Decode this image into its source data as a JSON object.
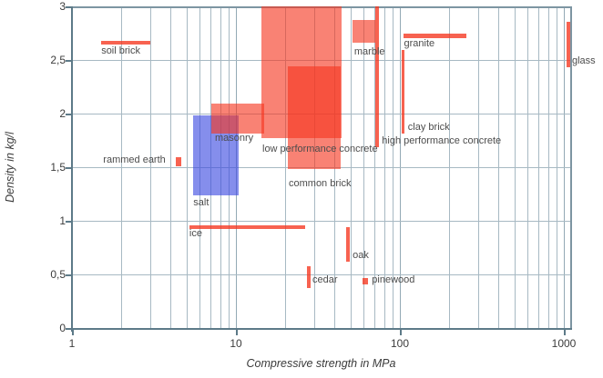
{
  "chart_data": {
    "type": "scatter",
    "title": "",
    "xlabel": "Compressive strength in MPa",
    "ylabel": "Density in kg/l",
    "x_scale": "log",
    "x_range": [
      1,
      1094
    ],
    "y_range": [
      0,
      3
    ],
    "grid": true,
    "legend": "none",
    "x_ticks": [
      {
        "v": 1,
        "label": "1"
      },
      {
        "v": 10,
        "label": "10"
      },
      {
        "v": 100,
        "label": "100"
      },
      {
        "v": 1000,
        "label": "1000"
      }
    ],
    "y_ticks": [
      {
        "v": 0,
        "label": "0"
      },
      {
        "v": 0.5,
        "label": "0,5"
      },
      {
        "v": 1,
        "label": "1"
      },
      {
        "v": 1.5,
        "label": "1,5"
      },
      {
        "v": 2,
        "label": "2"
      },
      {
        "v": 2.5,
        "label": "2,5"
      },
      {
        "v": 3,
        "label": "3"
      }
    ],
    "materials": [
      {
        "name": "soil brick",
        "kind": "bar",
        "color": "red",
        "x": [
          1.5,
          3.0
        ],
        "y": [
          2.64,
          2.68
        ],
        "label": {
          "text": "soil brick",
          "x": 1.51,
          "y": 2.64
        }
      },
      {
        "name": "rammed earth",
        "kind": "bar",
        "color": "red",
        "x": [
          4.3,
          4.65
        ],
        "y": [
          1.51,
          1.59
        ],
        "label": {
          "text": "rammed earth",
          "x": 1.55,
          "y": 1.62
        }
      },
      {
        "name": "salt",
        "kind": "area",
        "color": "blue",
        "x": [
          5.5,
          10.4
        ],
        "y": [
          1.24,
          1.98
        ],
        "label": {
          "text": "salt",
          "x": 5.5,
          "y": 1.22
        }
      },
      {
        "name": "masonry",
        "kind": "area",
        "color": "red",
        "x": [
          7.1,
          14.9
        ],
        "y": [
          1.81,
          2.09
        ],
        "label": {
          "text": "masonry",
          "x": 7.45,
          "y": 1.82
        }
      },
      {
        "name": "ice",
        "kind": "bar",
        "color": "red",
        "x": [
          5.2,
          26.4
        ],
        "y": [
          0.92,
          0.96
        ],
        "label": {
          "text": "ice",
          "x": 5.2,
          "y": 0.93
        }
      },
      {
        "name": "low performance concrete",
        "kind": "area",
        "color": "red",
        "x": [
          14.3,
          44.3
        ],
        "y": [
          1.77,
          3.0
        ],
        "label": {
          "text": "low performance concrete",
          "x": 14.5,
          "y": 1.72
        }
      },
      {
        "name": "common brick",
        "kind": "area",
        "color": "red",
        "x": [
          20.8,
          43.5
        ],
        "y": [
          1.48,
          2.44
        ],
        "label": {
          "text": "common brick",
          "x": 21.0,
          "y": 1.4
        }
      },
      {
        "name": "cedar",
        "kind": "bar",
        "color": "red",
        "x": [
          27.2,
          28.7
        ],
        "y": [
          0.37,
          0.58
        ],
        "label": {
          "text": "cedar",
          "x": 29.3,
          "y": 0.5
        }
      },
      {
        "name": "oak",
        "kind": "bar",
        "color": "red",
        "x": [
          46.9,
          49.5
        ],
        "y": [
          0.62,
          0.94
        ],
        "label": {
          "text": "oak",
          "x": 51.5,
          "y": 0.73
        }
      },
      {
        "name": "pinewood",
        "kind": "bar",
        "color": "red",
        "x": [
          59,
          64
        ],
        "y": [
          0.41,
          0.47
        ],
        "label": {
          "text": "pinewood",
          "x": 67.5,
          "y": 0.5
        }
      },
      {
        "name": "marble",
        "kind": "area",
        "color": "red",
        "x": [
          51.5,
          71
        ],
        "y": [
          2.66,
          2.87
        ],
        "label": {
          "text": "marble",
          "x": 52.7,
          "y": 2.63
        }
      },
      {
        "name": "high performance concrete",
        "kind": "bar",
        "color": "red",
        "x": [
          71,
          74.7
        ],
        "y": [
          1.69,
          3.0
        ],
        "label": {
          "text": "high performance concrete",
          "x": 77.7,
          "y": 1.8
        }
      },
      {
        "name": "granite",
        "kind": "bar",
        "color": "red",
        "x": [
          105,
          254
        ],
        "y": [
          2.7,
          2.75
        ],
        "label": {
          "text": "granite",
          "x": 106,
          "y": 2.7
        }
      },
      {
        "name": "clay brick",
        "kind": "bar",
        "color": "red",
        "x": [
          102,
          107
        ],
        "y": [
          1.81,
          2.59
        ],
        "label": {
          "text": "clay brick",
          "x": 112,
          "y": 1.92
        }
      },
      {
        "name": "glass",
        "kind": "bar",
        "color": "red",
        "x": [
          1040,
          1094
        ],
        "y": [
          2.43,
          2.86
        ],
        "label": {
          "text": "glass",
          "x": 1122,
          "y": 2.54
        }
      }
    ]
  },
  "theme": {
    "red_fill": "#f5361f",
    "blue_fill": "#3a49e0",
    "grid_color": "#a7b9c3",
    "axis_color": "#5d7a88",
    "label_color": "#4c4c4c"
  }
}
